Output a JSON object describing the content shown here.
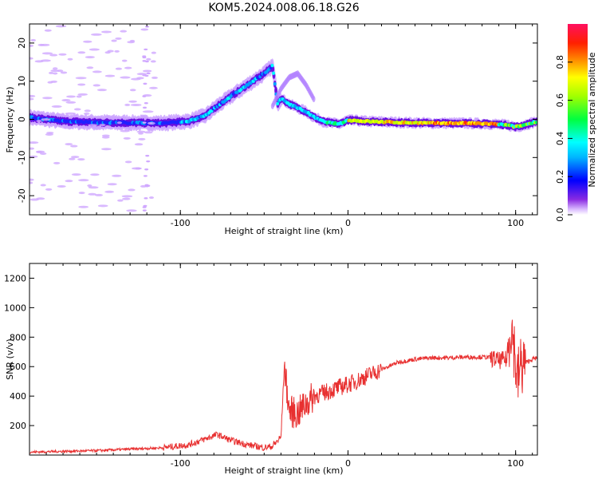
{
  "title": "KOM5.2024.008.06.18.G26",
  "chart_data": [
    {
      "type": "heatmap",
      "title": "KOM5.2024.008.06.18.G26",
      "xlabel": "Height of straight line (km)",
      "ylabel": "Frequency (Hz)",
      "xlim": [
        -190,
        113
      ],
      "ylim": [
        -25,
        25
      ],
      "xticks": [
        -100,
        0,
        100
      ],
      "yticks": [
        -20,
        -10,
        0,
        10,
        20
      ],
      "colorbar": {
        "label": "Normalized spectral amplitude",
        "range": [
          0,
          1
        ],
        "ticks": [
          "0.0",
          "0.2",
          "0.4",
          "0.6",
          "0.8"
        ],
        "colormap": "rainbow"
      },
      "ridge": {
        "x": [
          -190,
          -170,
          -150,
          -130,
          -110,
          -95,
          -85,
          -78,
          -70,
          -60,
          -50,
          -45,
          -42,
          -40,
          -35,
          -30,
          -25,
          -20,
          -15,
          -10,
          -5,
          0,
          10,
          30,
          50,
          70,
          85,
          95,
          100,
          105,
          113
        ],
        "y": [
          0.5,
          -0.5,
          -0.8,
          -0.9,
          -1.0,
          -0.5,
          1.0,
          3.5,
          6.0,
          9.0,
          12.0,
          14.0,
          4.0,
          5.5,
          4.0,
          3.0,
          2.0,
          0.5,
          -0.5,
          -1.0,
          -1.2,
          -0.2,
          -0.5,
          -0.8,
          -1.0,
          -1.0,
          -1.2,
          -1.5,
          -2.0,
          -1.5,
          -0.5
        ]
      },
      "secondary_branch": {
        "x": [
          -45,
          -40,
          -35,
          -30,
          -25,
          -20
        ],
        "y": [
          3.5,
          8.0,
          11.0,
          12.0,
          9.0,
          5.0
        ]
      }
    },
    {
      "type": "line",
      "xlabel": "Height of straight line (km)",
      "ylabel": "SNR (v/v)",
      "xlim": [
        -190,
        113
      ],
      "ylim": [
        0,
        1300
      ],
      "xticks": [
        -100,
        0,
        100
      ],
      "yticks": [
        200,
        400,
        600,
        800,
        1000,
        1200
      ],
      "line_color": "#e83030",
      "series": [
        {
          "x": [
            -190,
            -170,
            -150,
            -130,
            -110,
            -95,
            -85,
            -78,
            -70,
            -60,
            -50,
            -45,
            -40,
            -38,
            -35,
            -30,
            -25,
            -20,
            -15,
            -10,
            -5,
            0,
            5,
            10,
            20,
            30,
            40,
            50,
            60,
            70,
            80,
            85,
            90,
            95,
            97,
            99,
            101,
            103,
            105,
            110,
            113
          ],
          "values": [
            20,
            25,
            30,
            40,
            50,
            70,
            110,
            140,
            100,
            70,
            50,
            60,
            120,
            600,
            300,
            280,
            350,
            400,
            420,
            440,
            460,
            480,
            500,
            530,
            580,
            630,
            650,
            660,
            660,
            665,
            665,
            660,
            640,
            650,
            900,
            750,
            500,
            600,
            620,
            650,
            660
          ]
        }
      ]
    }
  ]
}
